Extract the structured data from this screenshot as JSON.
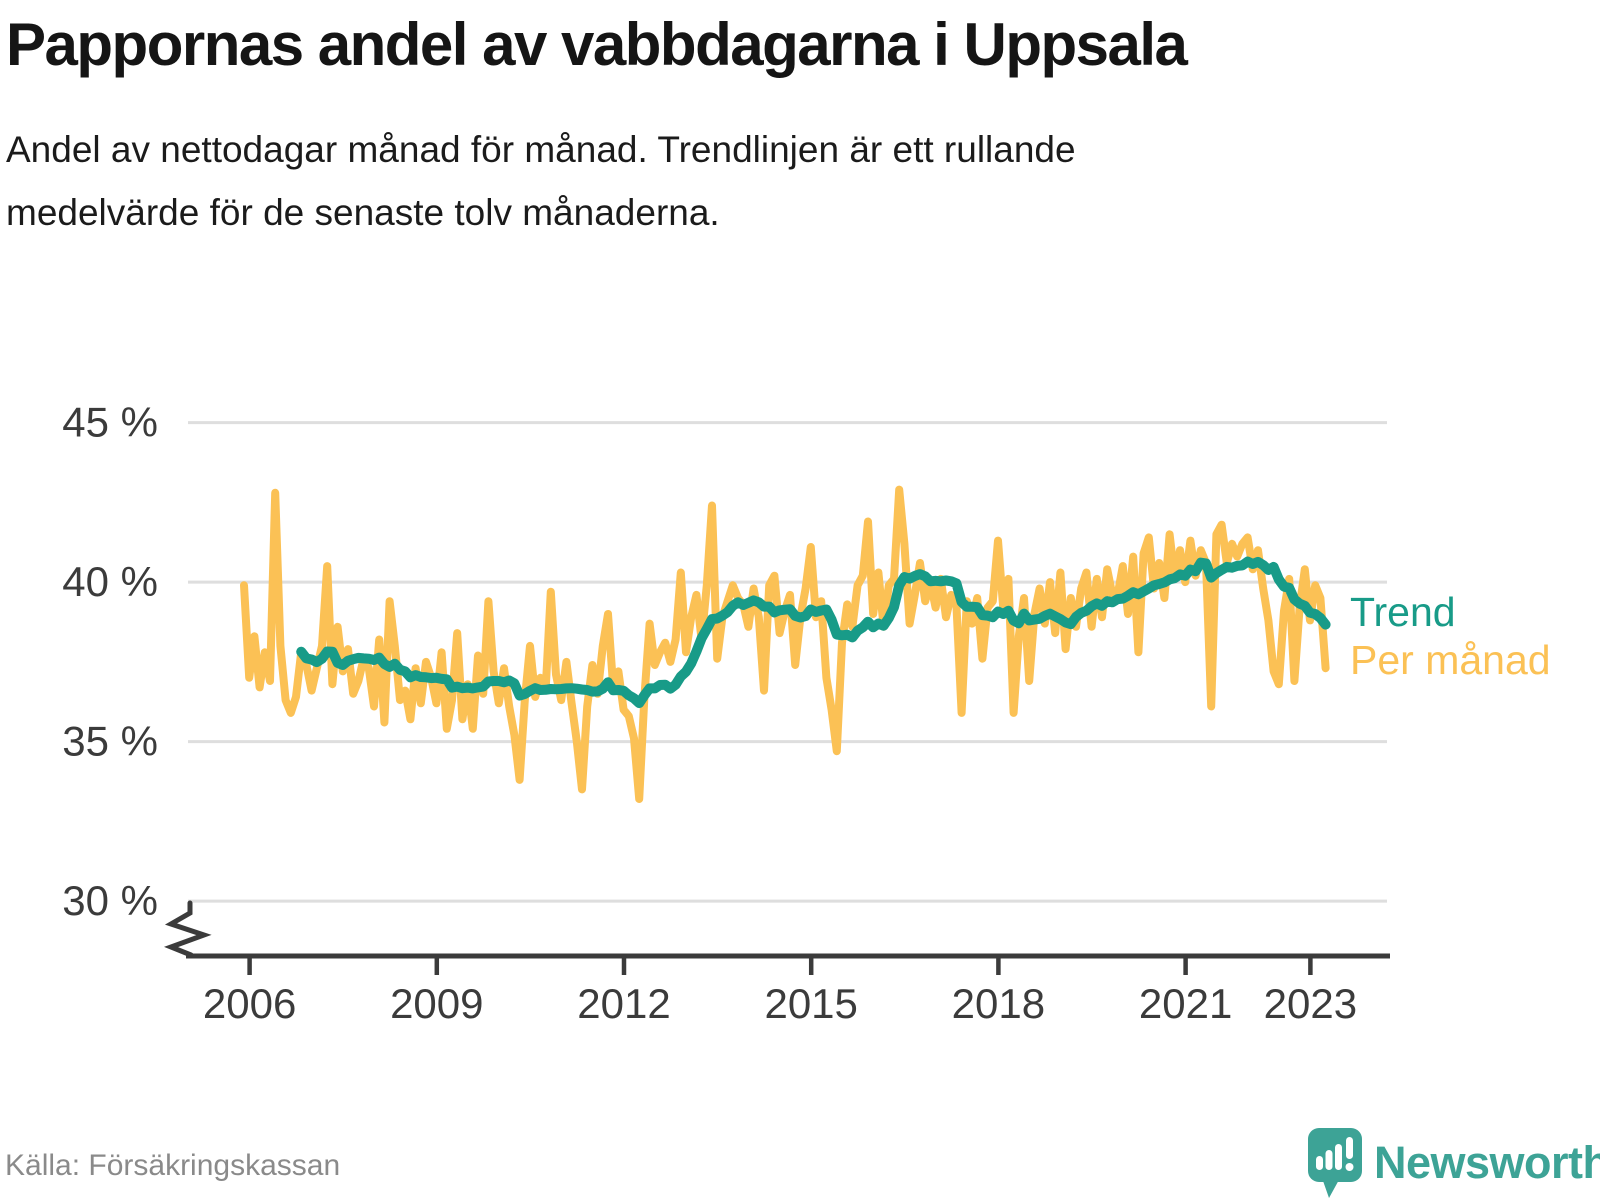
{
  "header": {
    "title": "Pappornas andel av vabbdagarna i Uppsala",
    "subtitle_line1": "Andel av nettodagar månad för månad. Trendlinjen är ett rullande",
    "subtitle_line2": "medelvärde för de senaste tolv månaderna."
  },
  "legend": {
    "trend": "Trend",
    "monthly": "Per månad"
  },
  "footer": {
    "source": "Källa: Försäkringskassan",
    "brand": "Newsworthy"
  },
  "colors": {
    "monthly_line": "#FBC155",
    "trend_line": "#189B88",
    "grid": "#DEDEDE",
    "axis": "#3B3B3B",
    "title_text": "#151515",
    "source_text": "#8A8A8A",
    "brand_teal": "#3DA396"
  },
  "chart_data": {
    "type": "line",
    "title": "Pappornas andel av vabbdagarna i Uppsala",
    "subtitle": "Andel av nettodagar månad för månad. Trendlinjen är ett rullande medelvärde för de senaste tolv månaderna.",
    "unit": "%",
    "source": "Källa: Försäkringskassan",
    "x": {
      "start": "2006-01",
      "end": "2023-05",
      "frequency": "monthly",
      "tick_years": [
        2006,
        2009,
        2012,
        2015,
        2018,
        2021,
        2023
      ]
    },
    "y": {
      "tick_values": [
        45,
        40,
        35,
        30
      ],
      "tick_labels": [
        "45 %",
        "40 %",
        "35 %",
        "30 %"
      ],
      "display_min": 30,
      "display_max": 45,
      "axis_break_below_min": true
    },
    "grid": "horizontal gridlines only",
    "legend_position": "right of line ends",
    "series": [
      {
        "name": "Per månad",
        "color": "#FBC155",
        "values": [
          39.9,
          37.0,
          38.3,
          36.7,
          37.8,
          36.9,
          42.8,
          38.0,
          36.3,
          35.9,
          36.4,
          37.8,
          37.4,
          36.6,
          37.3,
          38.0,
          40.5,
          36.8,
          38.6,
          37.2,
          37.9,
          36.5,
          36.9,
          37.6,
          37.3,
          36.1,
          38.2,
          35.6,
          39.4,
          38.0,
          36.3,
          36.6,
          35.7,
          37.3,
          36.2,
          37.5,
          37.0,
          36.2,
          37.8,
          35.4,
          36.3,
          38.4,
          35.7,
          36.8,
          35.4,
          37.7,
          36.5,
          39.4,
          37.2,
          36.2,
          37.3,
          36.1,
          35.2,
          33.8,
          36.3,
          38.0,
          36.4,
          37.0,
          36.6,
          39.7,
          37.1,
          36.3,
          37.5,
          36.2,
          35.0,
          33.5,
          36.1,
          37.4,
          36.5,
          38.0,
          39.0,
          36.7,
          37.2,
          36.0,
          35.8,
          35.1,
          33.2,
          36.4,
          38.7,
          37.4,
          37.8,
          38.1,
          37.5,
          38.2,
          40.3,
          37.8,
          38.9,
          39.6,
          38.2,
          39.9,
          42.4,
          37.6,
          38.9,
          39.4,
          39.9,
          39.5,
          39.3,
          38.6,
          39.8,
          38.9,
          36.6,
          39.9,
          40.2,
          38.4,
          39.1,
          39.6,
          37.4,
          38.9,
          39.8,
          41.1,
          38.9,
          39.4,
          37.0,
          36.0,
          34.7,
          38.1,
          39.3,
          38.6,
          39.9,
          40.2,
          41.9,
          39.0,
          40.3,
          38.6,
          39.9,
          40.1,
          42.9,
          41.2,
          38.7,
          39.6,
          40.6,
          39.4,
          40.0,
          39.2,
          40.1,
          38.9,
          39.6,
          39.3,
          35.9,
          39.4,
          38.7,
          39.5,
          37.6,
          39.2,
          39.4,
          41.3,
          39.2,
          40.1,
          35.9,
          38.3,
          39.5,
          36.9,
          39.0,
          39.8,
          38.7,
          40.0,
          38.4,
          40.3,
          37.9,
          39.5,
          38.6,
          39.8,
          40.3,
          38.6,
          40.1,
          38.9,
          40.4,
          39.6,
          39.6,
          40.5,
          39.0,
          40.8,
          37.8,
          40.9,
          41.4,
          39.8,
          40.6,
          39.5,
          41.5,
          40.1,
          41.0,
          40.0,
          41.3,
          40.2,
          41.0,
          40.6,
          36.1,
          41.5,
          41.8,
          40.6,
          41.2,
          40.8,
          41.2,
          41.4,
          40.4,
          41.0,
          39.8,
          38.8,
          37.2,
          36.8,
          39.1,
          40.1,
          36.9,
          39.2,
          40.4,
          38.8,
          39.9,
          39.5,
          37.3
        ]
      },
      {
        "name": "Trend",
        "color": "#189B88",
        "definition": "12-month trailing rolling mean of the Per månad series (starts Dec 2006, ends May 2023)",
        "values_derived": true
      }
    ]
  }
}
